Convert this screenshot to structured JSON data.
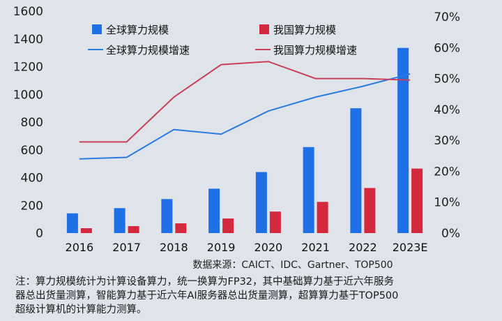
{
  "chart_data": {
    "type": "bar",
    "categories": [
      "2016",
      "2017",
      "2018",
      "2019",
      "2020",
      "2021",
      "2022",
      "2023E"
    ],
    "series": [
      {
        "name": "全球算力规模",
        "kind": "bar",
        "axis": "left",
        "color": "#1f6fe6",
        "values": [
          142,
          180,
          245,
          320,
          440,
          620,
          900,
          1335
        ]
      },
      {
        "name": "我国算力规模",
        "kind": "bar",
        "axis": "left",
        "color": "#d4293d",
        "values": [
          35,
          50,
          70,
          105,
          155,
          225,
          325,
          465
        ]
      },
      {
        "name": "全球算力规模增速",
        "kind": "line",
        "axis": "right",
        "color": "#2a7be0",
        "values": [
          0.24,
          0.245,
          0.335,
          0.32,
          0.395,
          0.44,
          0.475,
          0.515
        ]
      },
      {
        "name": "我国算力规模增速",
        "kind": "line",
        "axis": "right",
        "color": "#c8415a",
        "values": [
          0.295,
          0.295,
          0.44,
          0.545,
          0.555,
          0.5,
          0.5,
          0.495
        ]
      }
    ],
    "left_axis": {
      "ticks": [
        "0",
        "200",
        "400",
        "600",
        "800",
        "1000",
        "1200",
        "1400",
        "1600"
      ],
      "ylim": [
        0,
        1600
      ]
    },
    "right_axis": {
      "ticks": [
        "0%",
        "10%",
        "20%",
        "30%",
        "40%",
        "50%",
        "60%",
        "70%"
      ],
      "ylim": [
        0,
        0.7
      ]
    },
    "legend": {
      "placement": "top",
      "items": [
        "全球算力规模",
        "我国算力规模",
        "全球算力规模增速",
        "我国算力规模增速"
      ]
    },
    "source_text": "数据来源：CAICT、IDC、Gartner、TOP500",
    "grid": false
  },
  "note": {
    "lines": [
      "注：算力规模统计为计算设备算力，统一换算为FP32，其中基础算力基于近六年服务",
      "器总出货量测算，智能算力基于近六年AI服务器总出货量测算，超算算力基于TOP500",
      "超级计算机的计算能力测算。"
    ]
  }
}
